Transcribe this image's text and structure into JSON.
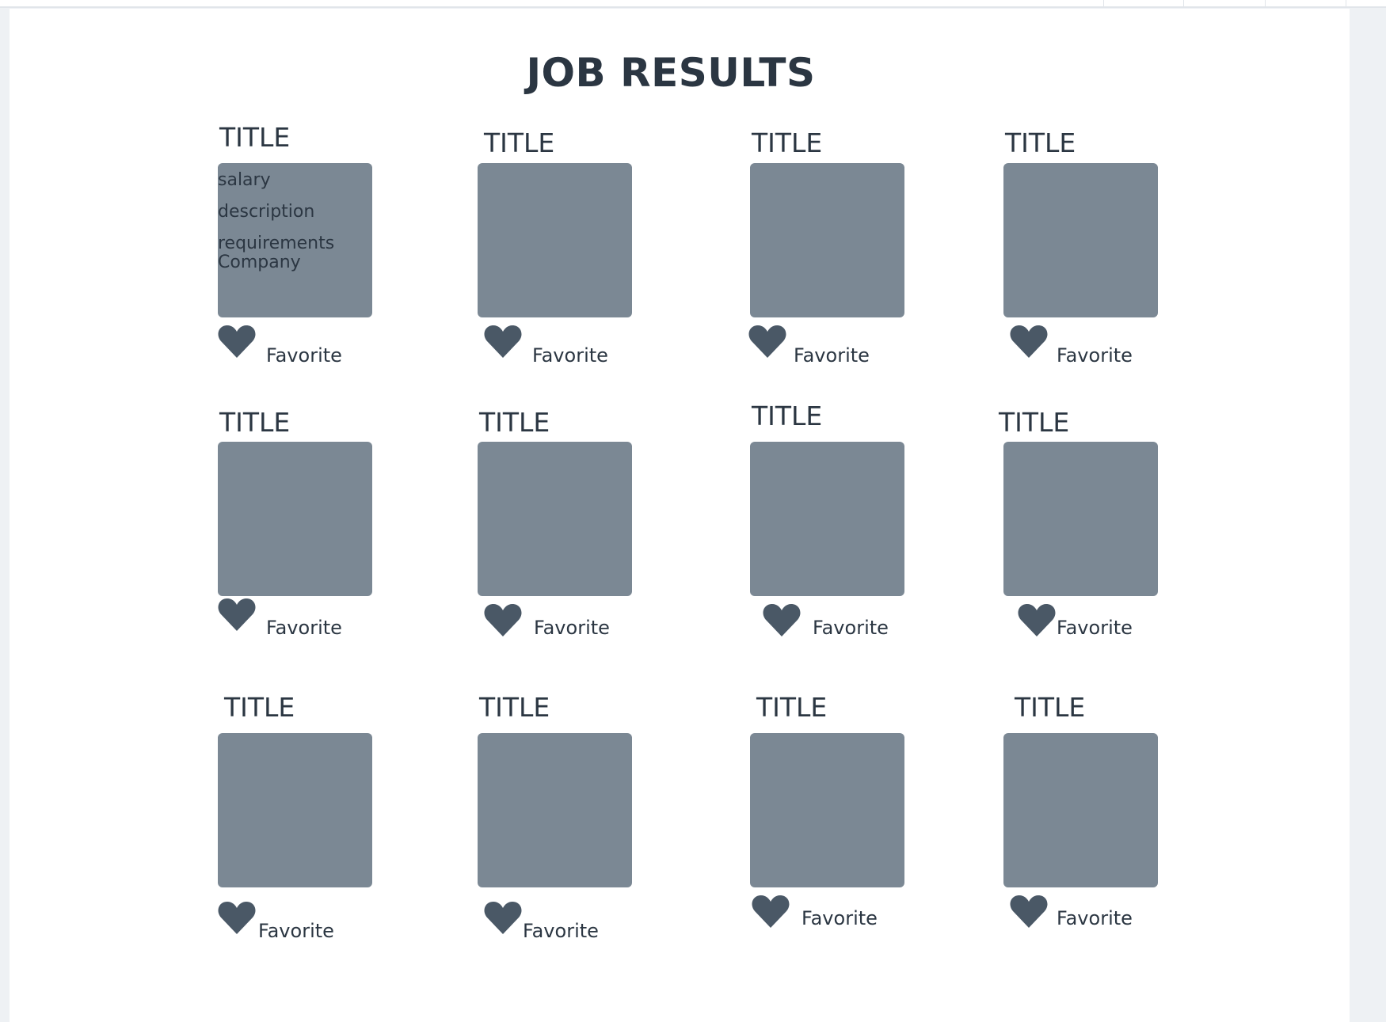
{
  "page": {
    "heading": "JOB RESULTS"
  },
  "colors": {
    "card_fill": "#7b8894",
    "heart": "#4a5866",
    "text": "#2b3642"
  },
  "icons": {
    "favorite": "heart-icon"
  },
  "first_job_details": {
    "salary": "salary",
    "description": "description",
    "requirements": "requirements",
    "company": "Company"
  },
  "jobs": [
    {
      "title": "TITLE",
      "favorite_label": "Favorite"
    },
    {
      "title": "TITLE",
      "favorite_label": "Favorite"
    },
    {
      "title": "TITLE",
      "favorite_label": "Favorite"
    },
    {
      "title": "TITLE",
      "favorite_label": "Favorite"
    },
    {
      "title": "TITLE",
      "favorite_label": "Favorite"
    },
    {
      "title": "TITLE",
      "favorite_label": "Favorite"
    },
    {
      "title": "TITLE",
      "favorite_label": "Favorite"
    },
    {
      "title": "TITLE",
      "favorite_label": "Favorite"
    },
    {
      "title": "TITLE",
      "favorite_label": "Favorite"
    },
    {
      "title": "TITLE",
      "favorite_label": "Favorite"
    },
    {
      "title": "TITLE",
      "favorite_label": "Favorite"
    },
    {
      "title": "TITLE",
      "favorite_label": "Favorite"
    }
  ]
}
